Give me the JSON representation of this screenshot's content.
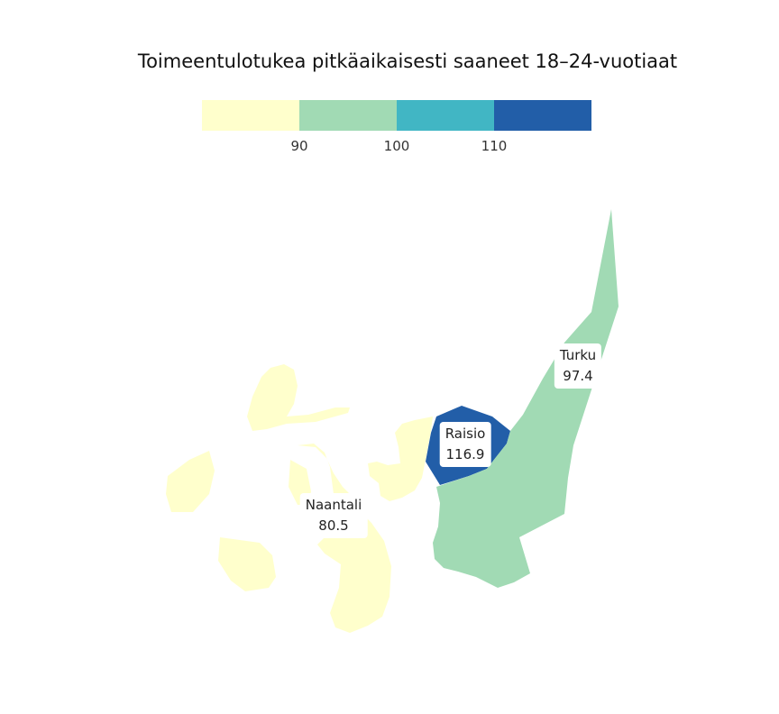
{
  "title": "Toimeentulotukea pitkäaikaisesti saaneet 18–24-vuotiaat",
  "legend": {
    "colors": [
      "#ffffcc",
      "#a1dab4",
      "#41b6c4",
      "#225ea8"
    ],
    "breaks": [
      "90",
      "100",
      "110"
    ]
  },
  "regions": [
    {
      "name": "Naantali",
      "value": "80.5",
      "color": "#ffffcc"
    },
    {
      "name": "Raisio",
      "value": "116.9",
      "color": "#225ea8"
    },
    {
      "name": "Turku",
      "value": "97.4",
      "color": "#a1dab4"
    }
  ]
}
